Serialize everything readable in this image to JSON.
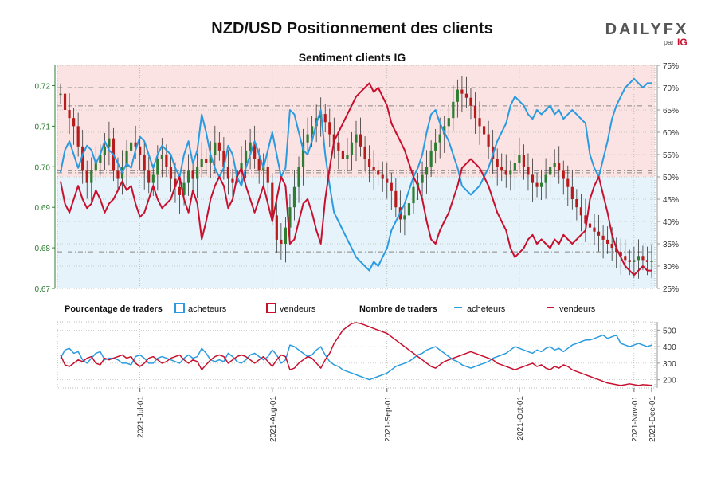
{
  "header": {
    "title": "NZD/USD Positionnement des clients",
    "logo_text": "DAILYFX",
    "logo_sub": "par",
    "logo_brand": "IG"
  },
  "colors": {
    "buyers": "#2b9be0",
    "sellers": "#c8102e",
    "bg_buy": "#e6f3fb",
    "bg_sell": "#fbe3e3",
    "up_candle": "#2e7d32",
    "down_candle": "#b71c1c",
    "price_axis": "#2e7d32",
    "grid": "#9aa89a"
  },
  "chart_data": [
    {
      "type": "line",
      "title": "Sentiment clients IG",
      "x_ticks": [
        "2021-Jul-01",
        "2021-Aug-01",
        "2021-Sep-01",
        "2021-Oct-01",
        "2021-Nov-01",
        "2021-Dec-01"
      ],
      "price_axis": {
        "ylim": [
          0.67,
          0.725
        ],
        "ticks": [
          0.67,
          0.68,
          0.69,
          0.7,
          0.71,
          0.72
        ],
        "labels": [
          "0.67",
          "0.68",
          "0.69",
          "0.70",
          "0.71",
          "0.72"
        ]
      },
      "percent_axis": {
        "ylim": [
          25,
          75
        ],
        "ticks": [
          25,
          30,
          35,
          40,
          45,
          50,
          55,
          60,
          65,
          70,
          75
        ],
        "labels": [
          "25%",
          "30%",
          "35%",
          "40%",
          "45%",
          "50%",
          "55%",
          "60%",
          "65%",
          "70%",
          "75%"
        ]
      },
      "reference_lines": [
        0.7195,
        0.715,
        0.699,
        0.6985,
        0.679
      ],
      "series": [
        {
          "name": "acheteurs %",
          "values": [
            51,
            56,
            58,
            55,
            52,
            55,
            57,
            56,
            53,
            55,
            58,
            56,
            55,
            53,
            51,
            53,
            52,
            56,
            59,
            58,
            55,
            52,
            55,
            57,
            56,
            55,
            52,
            50,
            55,
            58,
            53,
            56,
            64,
            60,
            55,
            52,
            50,
            52,
            57,
            55,
            50,
            48,
            52,
            55,
            58,
            55,
            52,
            56,
            60,
            55,
            50,
            52,
            65,
            64,
            60,
            56,
            55,
            58,
            62,
            65,
            55,
            48,
            42,
            40,
            38,
            36,
            34,
            32,
            31,
            30,
            29,
            31,
            30,
            32,
            34,
            38,
            40,
            42,
            44,
            47,
            50,
            52,
            55,
            60,
            64,
            65,
            62,
            60,
            58,
            55,
            52,
            48,
            47,
            46,
            47,
            48,
            50,
            52,
            55,
            58,
            60,
            62,
            66,
            68,
            67,
            66,
            64,
            63,
            65,
            64,
            65,
            66,
            64,
            65,
            63,
            64,
            65,
            64,
            63,
            62,
            55,
            52,
            50,
            54,
            58,
            63,
            66,
            68,
            70,
            71,
            72,
            71,
            70,
            71,
            71
          ]
        },
        {
          "name": "vendeurs %",
          "values": [
            49,
            44,
            42,
            45,
            48,
            45,
            43,
            44,
            47,
            45,
            42,
            44,
            45,
            47,
            49,
            47,
            48,
            44,
            41,
            42,
            45,
            48,
            45,
            43,
            44,
            45,
            48,
            50,
            45,
            42,
            47,
            44,
            36,
            40,
            45,
            48,
            50,
            48,
            43,
            45,
            50,
            52,
            48,
            45,
            42,
            45,
            48,
            44,
            40,
            45,
            50,
            48,
            35,
            36,
            40,
            44,
            45,
            42,
            38,
            35,
            45,
            52,
            58,
            60,
            62,
            64,
            66,
            68,
            69,
            70,
            71,
            69,
            70,
            68,
            66,
            62,
            60,
            58,
            56,
            53,
            50,
            48,
            45,
            40,
            36,
            35,
            38,
            40,
            42,
            45,
            48,
            52,
            53,
            54,
            53,
            52,
            50,
            48,
            45,
            42,
            40,
            38,
            34,
            32,
            33,
            34,
            36,
            37,
            35,
            36,
            35,
            34,
            36,
            35,
            37,
            36,
            35,
            36,
            37,
            38,
            45,
            48,
            50,
            46,
            42,
            37,
            34,
            32,
            30,
            29,
            28,
            29,
            30,
            29,
            29
          ]
        },
        {
          "name": "NZD/USD",
          "values": [
            0.718,
            0.714,
            0.712,
            0.71,
            0.705,
            0.699,
            0.696,
            0.699,
            0.701,
            0.703,
            0.705,
            0.707,
            0.699,
            0.697,
            0.7,
            0.704,
            0.706,
            0.705,
            0.703,
            0.699,
            0.696,
            0.698,
            0.702,
            0.703,
            0.7,
            0.697,
            0.695,
            0.693,
            0.696,
            0.699,
            0.697,
            0.7,
            0.702,
            0.701,
            0.703,
            0.706,
            0.704,
            0.7,
            0.697,
            0.696,
            0.699,
            0.701,
            0.704,
            0.706,
            0.702,
            0.699,
            0.7,
            0.696,
            0.688,
            0.682,
            0.681,
            0.685,
            0.69,
            0.695,
            0.7,
            0.706,
            0.708,
            0.71,
            0.712,
            0.713,
            0.711,
            0.708,
            0.706,
            0.704,
            0.702,
            0.703,
            0.706,
            0.708,
            0.705,
            0.702,
            0.7,
            0.699,
            0.698,
            0.697,
            0.696,
            0.694,
            0.69,
            0.687,
            0.688,
            0.691,
            0.695,
            0.696,
            0.698,
            0.7,
            0.704,
            0.706,
            0.708,
            0.71,
            0.712,
            0.716,
            0.719,
            0.718,
            0.717,
            0.715,
            0.712,
            0.71,
            0.708,
            0.705,
            0.702,
            0.7,
            0.699,
            0.698,
            0.699,
            0.701,
            0.703,
            0.7,
            0.698,
            0.696,
            0.695,
            0.696,
            0.698,
            0.7,
            0.701,
            0.699,
            0.697,
            0.695,
            0.692,
            0.69,
            0.688,
            0.686,
            0.685,
            0.684,
            0.683,
            0.682,
            0.681,
            0.68,
            0.679,
            0.678,
            0.677,
            0.6765,
            0.677,
            0.678,
            0.677,
            0.6765,
            0.6768
          ]
        }
      ]
    },
    {
      "type": "line",
      "title": "Nombre de traders",
      "yaxis": {
        "ylim": [
          150,
          550
        ],
        "ticks": [
          200,
          300,
          400,
          500
        ],
        "labels": [
          "200",
          "300",
          "400",
          "500"
        ]
      },
      "series": [
        {
          "name": "acheteurs",
          "values": [
            330,
            380,
            390,
            360,
            370,
            320,
            300,
            330,
            360,
            370,
            320,
            330,
            330,
            320,
            300,
            300,
            290,
            340,
            350,
            330,
            300,
            300,
            330,
            340,
            330,
            320,
            310,
            300,
            330,
            350,
            330,
            340,
            390,
            360,
            320,
            310,
            320,
            310,
            360,
            340,
            310,
            300,
            320,
            350,
            360,
            340,
            320,
            340,
            380,
            350,
            300,
            320,
            410,
            400,
            380,
            360,
            340,
            350,
            380,
            400,
            350,
            310,
            290,
            280,
            260,
            250,
            240,
            230,
            220,
            210,
            200,
            210,
            220,
            230,
            240,
            260,
            280,
            290,
            300,
            310,
            330,
            350,
            360,
            380,
            390,
            400,
            380,
            360,
            340,
            320,
            310,
            290,
            280,
            270,
            280,
            290,
            300,
            310,
            330,
            340,
            350,
            360,
            380,
            400,
            390,
            380,
            370,
            360,
            380,
            370,
            390,
            400,
            380,
            390,
            370,
            390,
            410,
            420,
            430,
            440,
            440,
            450,
            460,
            470,
            450,
            460,
            470,
            420,
            410,
            400,
            410,
            420,
            410,
            400,
            410
          ]
        },
        {
          "name": "vendeurs",
          "values": [
            350,
            290,
            280,
            300,
            320,
            310,
            330,
            340,
            300,
            290,
            330,
            320,
            330,
            340,
            350,
            330,
            340,
            300,
            280,
            300,
            330,
            340,
            320,
            300,
            310,
            330,
            340,
            350,
            320,
            300,
            320,
            310,
            260,
            290,
            320,
            340,
            350,
            340,
            300,
            320,
            340,
            350,
            340,
            320,
            300,
            320,
            340,
            310,
            280,
            320,
            350,
            340,
            260,
            270,
            300,
            320,
            340,
            330,
            300,
            270,
            320,
            360,
            420,
            460,
            500,
            520,
            540,
            545,
            540,
            530,
            520,
            510,
            500,
            490,
            480,
            460,
            440,
            420,
            400,
            380,
            360,
            340,
            320,
            300,
            280,
            270,
            290,
            310,
            320,
            330,
            340,
            350,
            360,
            370,
            360,
            350,
            340,
            330,
            320,
            300,
            290,
            280,
            270,
            260,
            270,
            280,
            290,
            300,
            280,
            290,
            270,
            260,
            280,
            270,
            290,
            280,
            260,
            250,
            240,
            230,
            220,
            210,
            200,
            190,
            180,
            175,
            170,
            165,
            170,
            175,
            170,
            165,
            170,
            168,
            166
          ]
        }
      ]
    }
  ],
  "legend": {
    "pct_title": "Pourcentage de traders",
    "pct_buy": "acheteurs",
    "pct_sell": "vendeurs",
    "cnt_title": "Nombre de traders",
    "cnt_buy": "acheteurs",
    "cnt_sell": "vendeurs"
  }
}
